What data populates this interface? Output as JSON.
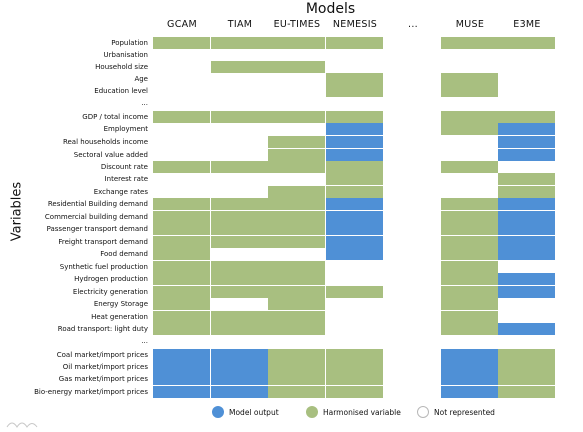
{
  "title": "Models",
  "y_axis_label": "Variables",
  "columns": [
    "GCAM",
    "TIAM",
    "EU-TIMES",
    "NEMESIS",
    "...",
    "MUSE",
    "E3ME"
  ],
  "colors": {
    "G": "#a8bf80",
    "B": "#4f90d6",
    "W": "#ffffff"
  },
  "rows": [
    {
      "label": "Population",
      "cells": [
        "G",
        "G",
        "G",
        "G",
        "",
        "G",
        "G"
      ]
    },
    {
      "label": "Urbanisation",
      "cells": [
        "W",
        "W",
        "W",
        "W",
        "",
        "W",
        "W"
      ]
    },
    {
      "label": "Household size",
      "cells": [
        "W",
        "G",
        "G",
        "W",
        "",
        "W",
        "W"
      ]
    },
    {
      "label": "Age",
      "cells": [
        "W",
        "W",
        "W",
        "G",
        "",
        "G",
        "W"
      ]
    },
    {
      "label": "Education level",
      "cells": [
        "W",
        "W",
        "W",
        "G",
        "",
        "G",
        "W"
      ]
    },
    {
      "label": "...",
      "cells": [
        "W",
        "W",
        "W",
        "W",
        "",
        "W",
        "W"
      ]
    },
    {
      "label": "GDP / total income",
      "cells": [
        "G",
        "G",
        "G",
        "G",
        "",
        "G",
        "G"
      ]
    },
    {
      "label": "Employment",
      "cells": [
        "W",
        "W",
        "W",
        "B",
        "",
        "G",
        "B"
      ]
    },
    {
      "label": "Real households income",
      "cells": [
        "W",
        "W",
        "G",
        "B",
        "",
        "W",
        "B"
      ]
    },
    {
      "label": "Sectoral value added",
      "cells": [
        "W",
        "W",
        "G",
        "B",
        "",
        "W",
        "B"
      ]
    },
    {
      "label": "Discount rate",
      "cells": [
        "G",
        "G",
        "G",
        "G",
        "",
        "G",
        "W"
      ]
    },
    {
      "label": "Interest rate",
      "cells": [
        "W",
        "W",
        "W",
        "G",
        "",
        "W",
        "G"
      ]
    },
    {
      "label": "Exchange rates",
      "cells": [
        "W",
        "W",
        "G",
        "G",
        "",
        "W",
        "G"
      ]
    },
    {
      "label": "Residential Building demand",
      "cells": [
        "G",
        "G",
        "G",
        "B",
        "",
        "G",
        "B"
      ]
    },
    {
      "label": "Commercial building demand",
      "cells": [
        "G",
        "G",
        "G",
        "B",
        "",
        "G",
        "B"
      ]
    },
    {
      "label": "Passenger transport demand",
      "cells": [
        "G",
        "G",
        "G",
        "B",
        "",
        "G",
        "B"
      ]
    },
    {
      "label": "Freight transport demand",
      "cells": [
        "G",
        "G",
        "G",
        "B",
        "",
        "G",
        "B"
      ]
    },
    {
      "label": "Food demand",
      "cells": [
        "G",
        "W",
        "W",
        "B",
        "",
        "G",
        "B"
      ]
    },
    {
      "label": "Synthetic fuel production",
      "cells": [
        "G",
        "G",
        "G",
        "W",
        "",
        "G",
        "W"
      ]
    },
    {
      "label": "Hydrogen production",
      "cells": [
        "G",
        "G",
        "G",
        "W",
        "",
        "G",
        "B"
      ]
    },
    {
      "label": "Electricity generation",
      "cells": [
        "G",
        "G",
        "G",
        "G",
        "",
        "G",
        "B"
      ]
    },
    {
      "label": "Energy Storage",
      "cells": [
        "G",
        "W",
        "G",
        "W",
        "",
        "G",
        "W"
      ]
    },
    {
      "label": "Heat generation",
      "cells": [
        "G",
        "G",
        "G",
        "W",
        "",
        "G",
        "W"
      ]
    },
    {
      "label": "Road transport: light duty",
      "cells": [
        "G",
        "G",
        "G",
        "W",
        "",
        "G",
        "B"
      ]
    },
    {
      "label": "...",
      "cells": [
        "W",
        "W",
        "W",
        "W",
        "",
        "W",
        "W"
      ]
    },
    {
      "label": "Coal market/import prices",
      "cells": [
        "B",
        "B",
        "G",
        "G",
        "",
        "B",
        "G"
      ]
    },
    {
      "label": "Oil market/import prices",
      "cells": [
        "B",
        "B",
        "G",
        "G",
        "",
        "B",
        "G"
      ]
    },
    {
      "label": "Gas market/import prices",
      "cells": [
        "B",
        "B",
        "G",
        "G",
        "",
        "B",
        "G"
      ]
    },
    {
      "label": "Bio-energy market/import prices",
      "cells": [
        "B",
        "B",
        "G",
        "G",
        "",
        "B",
        "G"
      ]
    }
  ],
  "legend": [
    {
      "key": "B",
      "label": "Model output"
    },
    {
      "key": "G",
      "label": "Harmonised variable"
    },
    {
      "key": "W",
      "label": "Not represented"
    }
  ]
}
